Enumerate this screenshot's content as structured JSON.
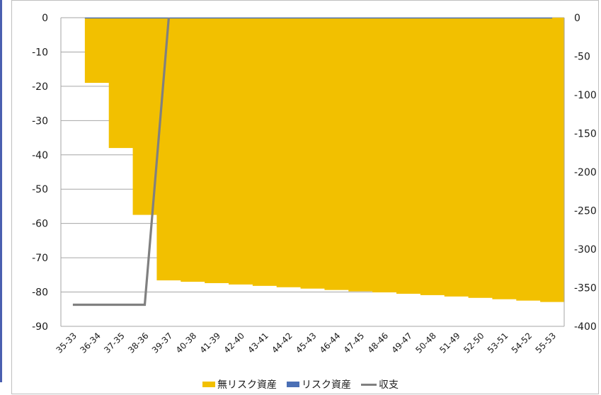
{
  "chart_data": {
    "type": "bar",
    "categories": [
      "35-33",
      "36-34",
      "37-35",
      "38-36",
      "39-37",
      "40-38",
      "41-39",
      "42-40",
      "43-41",
      "44-42",
      "45-43",
      "46-44",
      "47-45",
      "48-46",
      "49-47",
      "50-48",
      "51-49",
      "52-50",
      "53-51",
      "54-52",
      "55-53"
    ],
    "series": [
      {
        "name": "無リスク資産",
        "type": "area",
        "axis": "left",
        "color": "#f2c000",
        "values": [
          0,
          -19,
          -38,
          -57.5,
          -76.6,
          -77,
          -77.4,
          -77.8,
          -78.2,
          -78.6,
          -79,
          -79.4,
          -79.8,
          -80.1,
          -80.5,
          -80.9,
          -81.3,
          -81.7,
          -82.1,
          -82.5,
          -82.9
        ]
      },
      {
        "name": "リスク資産",
        "type": "area",
        "axis": "left",
        "color": "#4a6fb5",
        "values": [
          0,
          0,
          0,
          0,
          0,
          0,
          0,
          0,
          0,
          0,
          0,
          0,
          0,
          0,
          0,
          0,
          0,
          0,
          0,
          0,
          0
        ]
      },
      {
        "name": "収支",
        "type": "line",
        "axis": "right",
        "color": "#808080",
        "values": [
          -372,
          -372,
          -372,
          -372,
          0,
          0,
          0,
          0,
          0,
          0,
          0,
          0,
          0,
          0,
          0,
          0,
          0,
          0,
          0,
          0,
          0
        ]
      }
    ],
    "y_left": {
      "range": [
        -90,
        0
      ],
      "ticks": [
        0,
        -10,
        -20,
        -30,
        -40,
        -50,
        -60,
        -70,
        -80,
        -90
      ]
    },
    "y_right": {
      "range": [
        -400,
        0
      ],
      "ticks": [
        0,
        -50,
        -100,
        -150,
        -200,
        -250,
        -300,
        -350,
        -400
      ]
    },
    "grid": true,
    "legend_position": "bottom"
  }
}
